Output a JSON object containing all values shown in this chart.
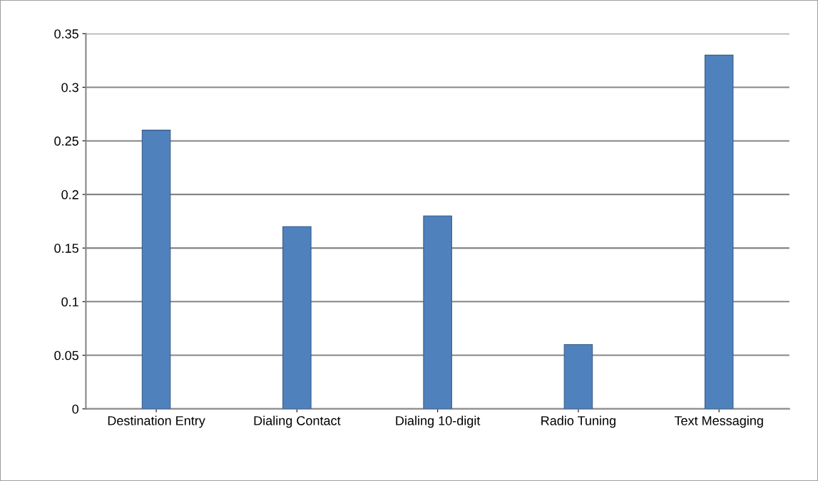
{
  "chart_data": {
    "type": "bar",
    "categories": [
      "Destination Entry",
      "Dialing Contact",
      "Dialing 10-digit",
      "Radio Tuning",
      "Text Messaging"
    ],
    "values": [
      0.26,
      0.17,
      0.18,
      0.06,
      0.33
    ],
    "color": "#4f81bd",
    "ylim": [
      0,
      0.35
    ],
    "yticks": [
      0,
      0.05,
      0.1,
      0.15,
      0.2,
      0.25,
      0.3,
      0.35
    ],
    "grid": "y",
    "legend": false
  }
}
